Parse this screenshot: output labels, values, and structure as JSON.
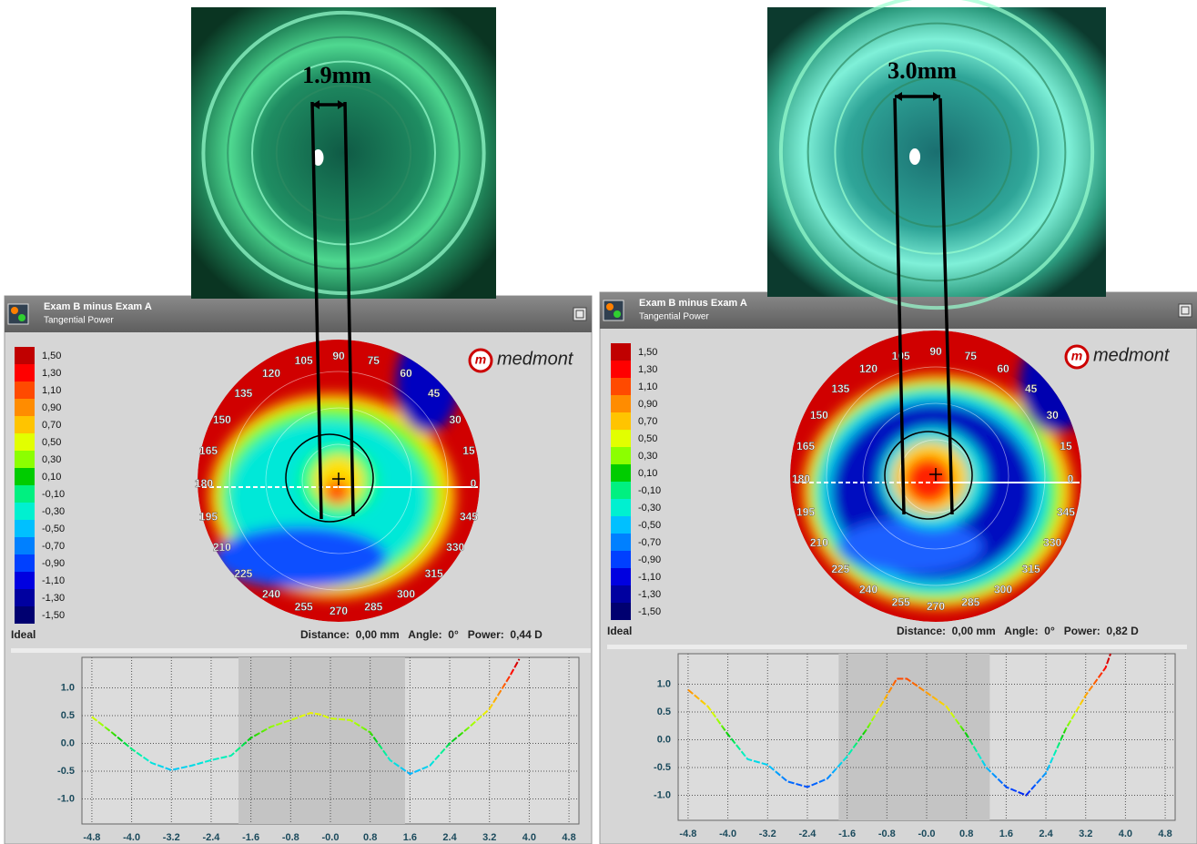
{
  "panels": [
    {
      "photo_label": "1.9mm",
      "window": {
        "title": "Exam B minus Exam A",
        "subtitle": "Tangential Power"
      },
      "scale": {
        "labels": [
          "1,50",
          "1,30",
          "1,10",
          "0,90",
          "0,70",
          "0,50",
          "0,30",
          "0,10",
          "-0,10",
          "-0,30",
          "-0,50",
          "-0,70",
          "-0,90",
          "-1,10",
          "-1,30",
          "-1,50"
        ],
        "colors": [
          "#c00000",
          "#ff0000",
          "#ff4a00",
          "#ff8c00",
          "#ffc400",
          "#e2ff00",
          "#8cff00",
          "#00cc00",
          "#00f080",
          "#00f0d0",
          "#00c0ff",
          "#0080ff",
          "#0040ff",
          "#0000e0",
          "#0000a0",
          "#000070"
        ]
      },
      "ideal": "Ideal",
      "logo_icon": "m",
      "logo": "medmont",
      "angles": [
        105,
        90,
        75,
        60,
        45,
        30,
        15,
        0,
        345,
        330,
        315,
        300,
        285,
        270,
        255,
        240,
        225,
        210,
        195,
        180,
        165,
        150,
        135,
        120
      ],
      "status": "Distance:  0,00 mm   Angle:  0°   Power:  0,44 D",
      "profile": {
        "x": [
          -4.8,
          -4.4,
          -4.0,
          -3.6,
          -3.2,
          -2.8,
          -2.4,
          -2.0,
          -1.6,
          -1.2,
          -0.8,
          -0.4,
          -0.2,
          0,
          0.4,
          0.8,
          1.2,
          1.6,
          2.0,
          2.4,
          2.8,
          3.2,
          3.6,
          3.8
        ],
        "y": [
          0.48,
          0.2,
          -0.1,
          -0.35,
          -0.48,
          -0.4,
          -0.3,
          -0.22,
          0.1,
          0.3,
          0.42,
          0.55,
          0.52,
          0.45,
          0.42,
          0.2,
          -0.3,
          -0.55,
          -0.4,
          0.0,
          0.3,
          0.62,
          1.2,
          1.52
        ],
        "zone": [
          -1.85,
          1.5
        ],
        "xlim": [
          -5,
          5
        ],
        "ylim": [
          -1.45,
          1.55
        ],
        "xticks": [
          -4.8,
          {
            "value": -4,
            "label": "-4.0"
          },
          -3.2,
          -2.4,
          -1.6,
          -0.8,
          {
            "value": 0,
            "label": "-0.0"
          },
          0.8,
          1.6,
          2.4,
          3.2,
          {
            "value": 4,
            "label": "4.0"
          },
          4.8
        ],
        "yticks": [
          {
            "value": 1,
            "label": "1.0"
          },
          0.5,
          {
            "value": 0,
            "label": "0.0"
          },
          -0.5,
          {
            "value": -1,
            "label": "-1.0"
          }
        ]
      }
    },
    {
      "photo_label": "3.0mm",
      "window": {
        "title": "Exam B minus Exam A",
        "subtitle": "Tangential Power"
      },
      "scale": {
        "labels": [
          "1,50",
          "1,30",
          "1,10",
          "0,90",
          "0,70",
          "0,50",
          "0,30",
          "0,10",
          "-0,10",
          "-0,30",
          "-0,50",
          "-0,70",
          "-0,90",
          "-1,10",
          "-1,30",
          "-1,50"
        ],
        "colors": [
          "#c00000",
          "#ff0000",
          "#ff4a00",
          "#ff8c00",
          "#ffc400",
          "#e2ff00",
          "#8cff00",
          "#00cc00",
          "#00f080",
          "#00f0d0",
          "#00c0ff",
          "#0080ff",
          "#0040ff",
          "#0000e0",
          "#0000a0",
          "#000070"
        ]
      },
      "ideal": "Ideal",
      "logo_icon": "m",
      "logo": "medmont",
      "angles": [
        105,
        90,
        75,
        60,
        45,
        30,
        15,
        0,
        345,
        330,
        315,
        300,
        285,
        270,
        255,
        240,
        225,
        210,
        195,
        180,
        165,
        150,
        135,
        120
      ],
      "status": "Distance:  0,00 mm   Angle:  0°   Power:  0,82 D",
      "profile": {
        "x": [
          -4.8,
          -4.4,
          -4.0,
          -3.6,
          -3.2,
          -2.8,
          -2.4,
          -2.0,
          -1.6,
          -1.2,
          -0.8,
          -0.6,
          -0.4,
          0,
          0.4,
          0.8,
          1.2,
          1.6,
          2.0,
          2.4,
          2.8,
          3.2,
          3.6,
          3.7
        ],
        "y": [
          0.9,
          0.6,
          0.1,
          -0.35,
          -0.45,
          -0.75,
          -0.85,
          -0.7,
          -0.3,
          0.2,
          0.8,
          1.1,
          1.1,
          0.85,
          0.6,
          0.1,
          -0.5,
          -0.85,
          -1.0,
          -0.6,
          0.2,
          0.8,
          1.3,
          1.55
        ],
        "zone": [
          -1.77,
          1.27
        ],
        "xlim": [
          -5,
          5
        ],
        "ylim": [
          -1.45,
          1.55
        ],
        "xticks": [
          -4.8,
          {
            "value": -4,
            "label": "-4.0"
          },
          -3.2,
          -2.4,
          -1.6,
          -0.8,
          {
            "value": 0,
            "label": "-0.0"
          },
          0.8,
          1.6,
          2.4,
          3.2,
          {
            "value": 4,
            "label": "4.0"
          },
          4.8
        ],
        "yticks": [
          {
            "value": 1,
            "label": "1.0"
          },
          0.5,
          {
            "value": 0,
            "label": "0.0"
          },
          -0.5,
          {
            "value": -1,
            "label": "-1.0"
          }
        ]
      }
    }
  ]
}
